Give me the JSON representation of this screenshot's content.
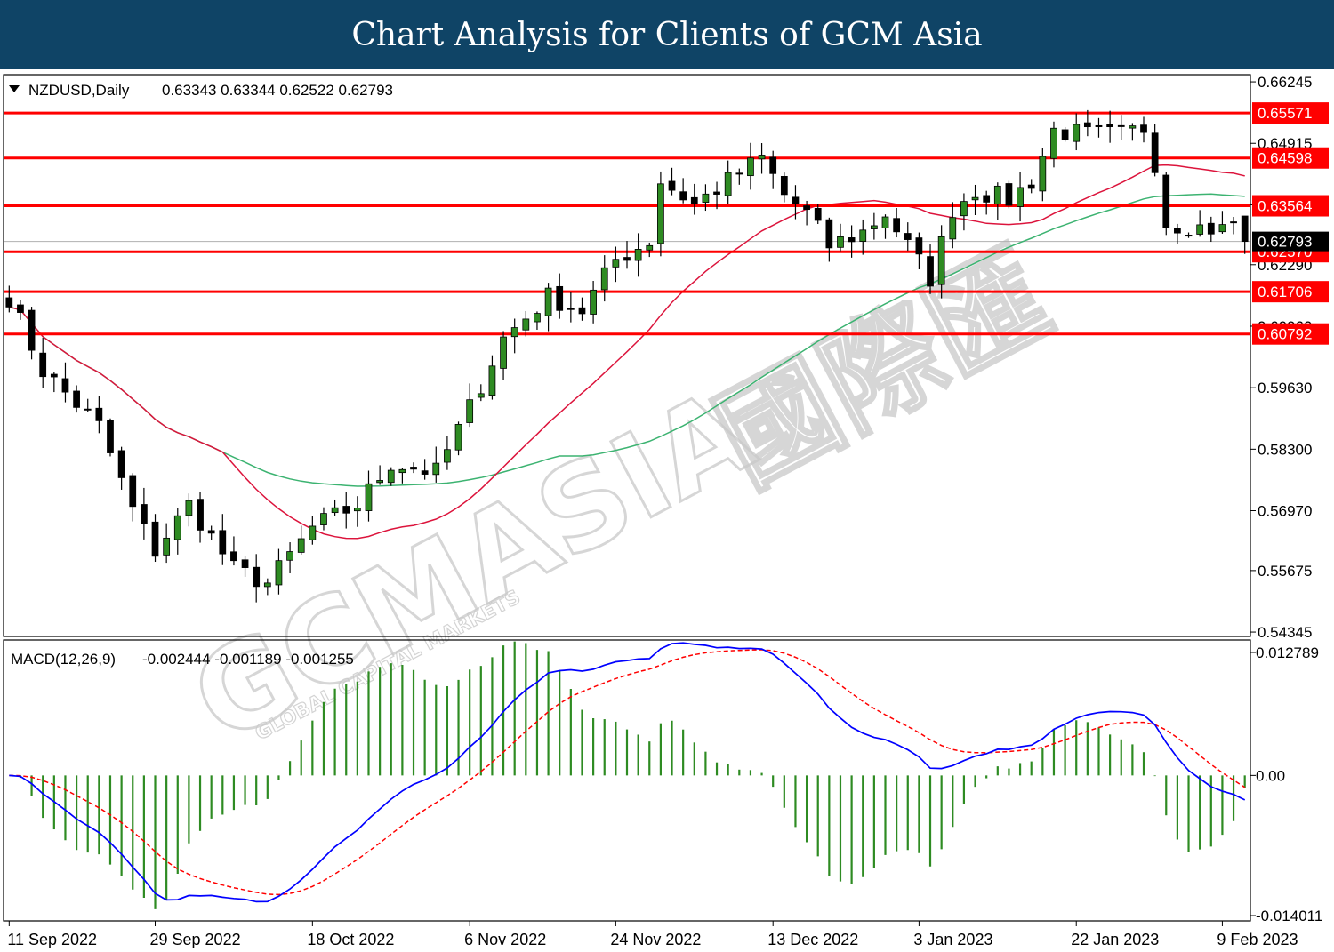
{
  "header": {
    "title": "Chart Analysis for Clients of GCM Asia"
  },
  "watermark": {
    "brand": "GCMASIA",
    "chinese": "國際匯",
    "tagline": "GLOBAL CAPITAL MARKETS"
  },
  "chart_data": [
    {
      "type": "candlestick",
      "symbol_label": "NZDUSD,Daily",
      "ohlc_label": "0.63343 0.63344 0.62522 0.62793",
      "last_ohlc": {
        "open": 0.63343,
        "high": 0.63344,
        "low": 0.62522,
        "close": 0.62793
      },
      "current_price_label": "0.62793",
      "ylim": [
        0.5425,
        0.664
      ],
      "y_ticks": [
        "0.66245",
        "0.64915",
        "0.63585",
        "0.62290",
        "0.60960",
        "0.59630",
        "0.58300",
        "0.56970",
        "0.55675",
        "0.54345"
      ],
      "x_tick_labels": [
        "11 Sep 2022",
        "29 Sep 2022",
        "18 Oct 2022",
        "6 Nov 2022",
        "24 Nov 2022",
        "13 Dec 2022",
        "3 Jan 2023",
        "22 Jan 2023",
        "9 Feb 2023"
      ],
      "x_tick_bars": [
        0,
        13,
        27,
        41,
        54,
        68,
        81,
        95,
        108
      ],
      "bar_count": 111,
      "ma_colors": {
        "fast": "#dc143c",
        "slow": "#3cb371"
      },
      "key_levels": [
        "0.65571",
        "0.64598",
        "0.63564",
        "0.62570",
        "0.61706",
        "0.60792"
      ],
      "level_color": "#ff0000",
      "bull_color": "#2e8b22",
      "bear_color": "#000000",
      "close_path": [
        [
          0,
          0.616
        ],
        [
          3,
          0.6
        ],
        [
          8,
          0.588
        ],
        [
          11,
          0.57
        ],
        [
          13,
          0.561
        ],
        [
          16,
          0.571
        ],
        [
          20,
          0.557
        ],
        [
          23,
          0.554
        ],
        [
          27,
          0.566
        ],
        [
          31,
          0.571
        ],
        [
          34,
          0.58
        ],
        [
          38,
          0.578
        ],
        [
          41,
          0.592
        ],
        [
          44,
          0.607
        ],
        [
          48,
          0.616
        ],
        [
          51,
          0.613
        ],
        [
          54,
          0.624
        ],
        [
          57,
          0.628
        ],
        [
          58,
          0.641
        ],
        [
          61,
          0.636
        ],
        [
          64,
          0.641
        ],
        [
          67,
          0.646
        ],
        [
          69,
          0.638
        ],
        [
          71,
          0.634
        ],
        [
          73,
          0.627
        ],
        [
          76,
          0.63
        ],
        [
          78,
          0.634
        ],
        [
          80,
          0.627
        ],
        [
          82,
          0.62
        ],
        [
          84,
          0.635
        ],
        [
          86,
          0.639
        ],
        [
          89,
          0.637
        ],
        [
          91,
          0.641
        ],
        [
          93,
          0.652
        ],
        [
          96,
          0.651
        ],
        [
          99,
          0.651
        ],
        [
          101,
          0.6525
        ],
        [
          102,
          0.645
        ],
        [
          103,
          0.632
        ],
        [
          106,
          0.631
        ],
        [
          108,
          0.6305
        ],
        [
          109,
          0.632
        ],
        [
          110,
          0.62793
        ]
      ]
    },
    {
      "type": "macd",
      "label": "MACD(12,26,9)",
      "values_label": "-0.002444 -0.001189 -0.001255",
      "values": {
        "macd": -0.002444,
        "signal": -0.001189,
        "histogram": -0.001255
      },
      "ylim": [
        -0.0145,
        0.0135
      ],
      "y_ticks": [
        "0.012789",
        "0.00",
        "-0.014011"
      ],
      "line_color": "#0000ff",
      "signal_color": "#ff0000",
      "hist_color": "#2e8b22"
    }
  ]
}
